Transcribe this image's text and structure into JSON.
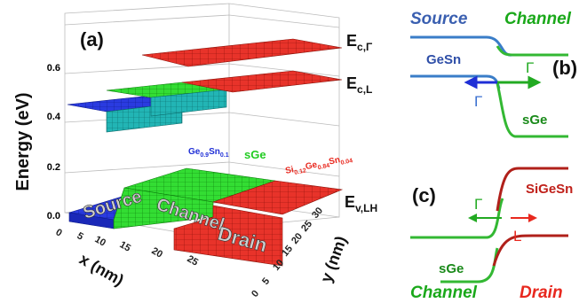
{
  "figure": {
    "panel_a": {
      "label": "(a)",
      "ylabel": "Energy (eV)",
      "xlabel": "x (nm)",
      "zlabel": "y (nm)",
      "energy_ticks": [
        "0.0",
        "0.2",
        "0.4",
        "0.6"
      ],
      "x_ticks": [
        "0",
        "5",
        "10",
        "15",
        "20",
        "25"
      ],
      "y_ticks": [
        "0",
        "5",
        "10",
        "15",
        "20",
        "25",
        "30"
      ],
      "band_labels": {
        "ec_gamma": "E",
        "ec_gamma_sub": "c,Γ",
        "ec_l": "E",
        "ec_l_sub": "c,L",
        "ev_lh": "E",
        "ev_lh_sub": "v,LH"
      },
      "materials": {
        "source": {
          "base": "Ge",
          "s1": "0.9",
          "b2": "Sn",
          "s2": "0.1"
        },
        "channel": "sGe",
        "drain": {
          "b1": "Si",
          "s1": "0.12",
          "b2": "Ge",
          "s2": "0.84",
          "b3": "Sn",
          "s3": "0.04"
        }
      },
      "regions": [
        "Source",
        "Channel",
        "Drain"
      ],
      "colors": {
        "source": "#1f2fd6",
        "channel": "#22cc22",
        "drain": "#e8281e"
      }
    },
    "panel_b": {
      "label": "(b)",
      "source": "Source",
      "channel": "Channel",
      "material_left": "GeSn",
      "material_right": "sGe",
      "gamma_left": "Γ",
      "gamma_right": "Γ"
    },
    "panel_c": {
      "label": "(c)",
      "material_top": "SiGeSn",
      "material_bottom": "sGe",
      "gamma": "Γ",
      "l_valley": "L",
      "channel": "Channel",
      "drain": "Drain"
    }
  }
}
